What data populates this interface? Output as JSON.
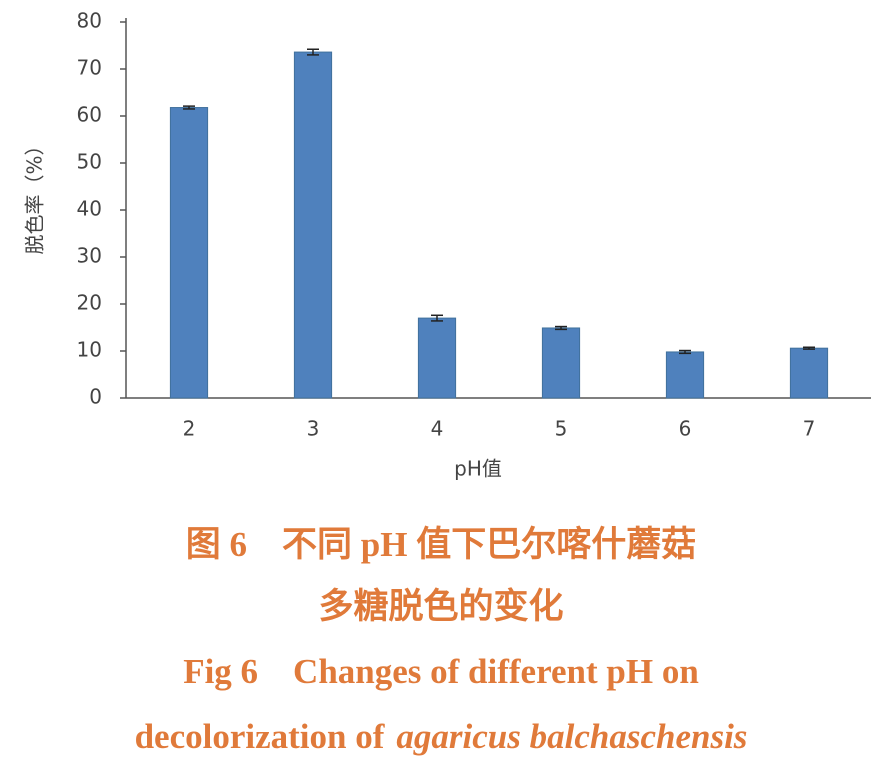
{
  "chart_data": {
    "type": "bar",
    "x_label": "pH值",
    "y_label": "脱色率（%）",
    "categories": [
      "2",
      "3",
      "4",
      "5",
      "6",
      "7"
    ],
    "values": [
      61.8,
      73.6,
      17.0,
      14.9,
      9.8,
      10.6
    ],
    "errors": [
      0.3,
      0.6,
      0.6,
      0.3,
      0.3,
      0.2
    ],
    "color": "#4f81bd",
    "ylim": [
      0,
      80
    ],
    "yticks": [
      0,
      10,
      20,
      30,
      40,
      50,
      60,
      70,
      80
    ],
    "grid": false
  },
  "caption": {
    "cn_lines": [
      "图 6　不同 pH 值下巴尔喀什蘑菇",
      "多糖脱色的变化"
    ],
    "en_line1": "Fig 6　Changes of different pH on",
    "en_line2_plain": "decolorization of",
    "en_line2_italic": "agaricus balchaschensis"
  }
}
